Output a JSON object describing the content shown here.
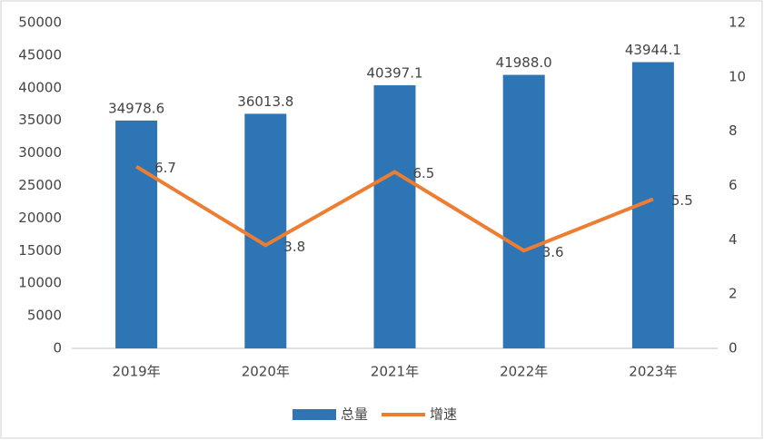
{
  "chart_data": {
    "type": "bar",
    "categories": [
      "2019年",
      "2020年",
      "2021年",
      "2022年",
      "2023年"
    ],
    "series": [
      {
        "name": "总量",
        "color": "#2e75b6",
        "type": "bar",
        "values": [
          34978.6,
          36013.8,
          40397.1,
          41988.0,
          43944.1
        ],
        "value_labels": [
          "34978.6",
          "36013.8",
          "40397.1",
          "41988.0",
          "43944.1"
        ]
      },
      {
        "name": "增速",
        "color": "#ed7d31",
        "type": "line",
        "axis": "y2",
        "values": [
          6.7,
          3.8,
          6.5,
          3.6,
          5.5
        ]
      }
    ],
    "ylim": [
      0,
      50000
    ],
    "yticks": [
      0,
      5000,
      10000,
      15000,
      20000,
      25000,
      30000,
      35000,
      40000,
      45000,
      50000
    ],
    "y2lim": [
      0,
      12
    ],
    "y2ticks": [
      0,
      2,
      4,
      6,
      8,
      10,
      12
    ],
    "grid": false,
    "legend": "bottom"
  }
}
